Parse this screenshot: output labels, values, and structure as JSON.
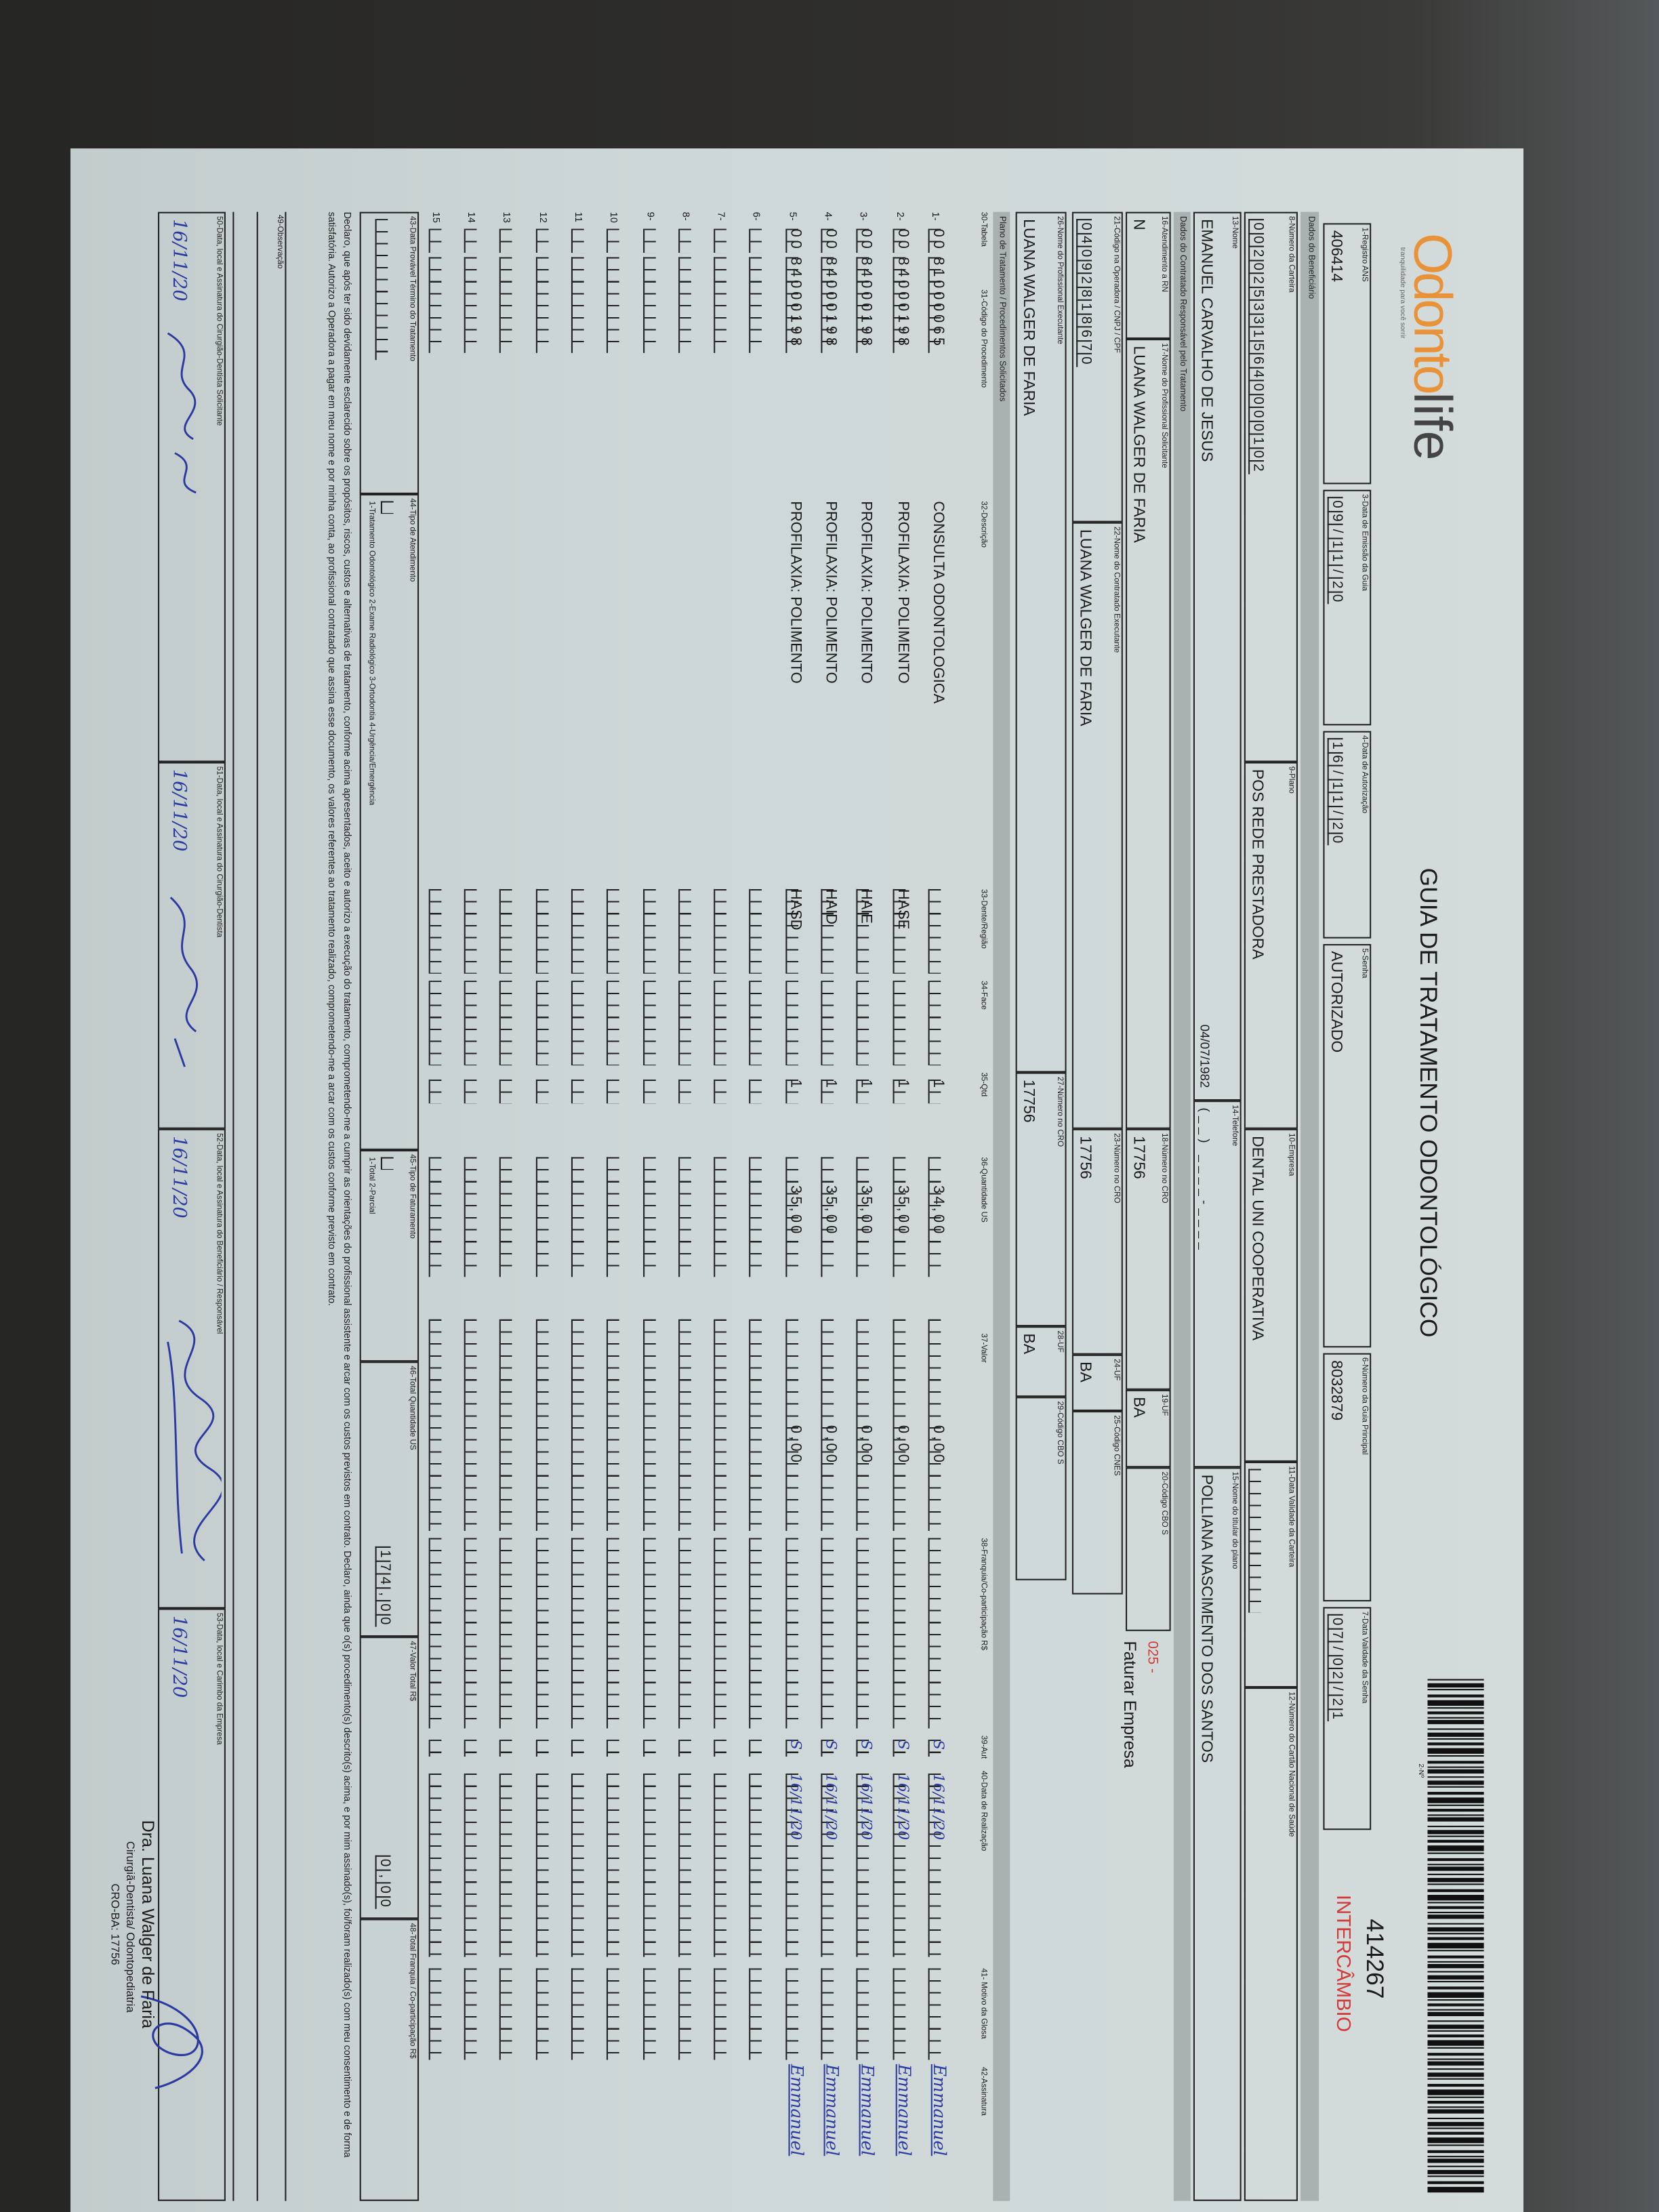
{
  "header": {
    "brand": "OdontoLife",
    "brand_part1": "Odonto",
    "brand_part2": "life",
    "tagline": "tranquilidade para você sorrir",
    "title": "GUIA DE TRATAMENTO ODONTOLÓGICO",
    "number_label": "2-Nº",
    "number": "414267",
    "badge": "INTERCÂMBIO",
    "badge_color": "#d23a3a",
    "brand_color": "#e8923a"
  },
  "row1": {
    "f1_label": "1-Registro ANS",
    "f1": "406414",
    "f3_label": "3-Data de Emissão da Guia",
    "f3": "09/11/20",
    "f4_label": "4-Data de Autorização",
    "f4": "16/11/20",
    "f5_label": "5-Senha",
    "f5": "AUTORIZADO",
    "f6_label": "6-Número da Guia Principal",
    "f6": "8032879",
    "f7_label": "7-Data Validade da Senha",
    "f7": "07/02/21"
  },
  "sections": {
    "beneficiario": "Dados do Beneficiário",
    "contratado": "Dados do Contratado Responsável pelo Tratamento",
    "plano": "Plano de Tratamento / Procedimentos Solicitados"
  },
  "beneficiario": {
    "f8_label": "8-Número da Carteira",
    "f8": "0020253315640000102",
    "f9_label": "9-Plano",
    "f9": "POS REDE PRESTADORA",
    "f10_label": "10-Empresa",
    "f10": "DENTAL UNI  COOPERATIVA",
    "f11_label": "11-Data Validade da Carteira",
    "f12_label": "12-Número do Cartão Nacional de Saúde",
    "f13_label": "13-Nome",
    "f13": "EMANUEL CARVALHO DE JESUS",
    "birth": "04/07/1982",
    "f14_label": "14-Telefone",
    "f14": "(__) ____-____",
    "f15_label": "15-Nome do titular do plano",
    "f15": "POLLIANA NASCIMENTO DOS SANTOS"
  },
  "contratado": {
    "f16_label": "16-Atendimento a RN",
    "f16": "N",
    "f17_label": "17-Nome do Profissional Solicitante",
    "f17": "LUANA WALGER DE FARIA",
    "f18_label": "18-Número no CRO",
    "f18": "17756",
    "f19_label": "19-UF",
    "f19": "BA",
    "f20_label": "20-Código CBO S",
    "cbo_code": "025 -",
    "cbo_text": "Faturar Empresa",
    "f21_label": "21-Código na Operadora / CNPJ / CPF",
    "f21": "04092818670",
    "f22_label": "22-Nome do Contratado Executante",
    "f22": "LUANA WALGER DE FARIA",
    "f23_label": "23-Número no CRO",
    "f23": "17756",
    "f24_label": "24-UF",
    "f24": "BA",
    "f25_label": "25-Código CNES",
    "f26_label": "26-Nome do Profissional Executante",
    "f26": "LUANA WALGER DE FARIA",
    "f27_label": "27-Número no CRO",
    "f27": "17756",
    "f28_label": "28-UF",
    "f28": "BA",
    "f29_label": "29-Código CBO S"
  },
  "table": {
    "headers": [
      "30-Tabela",
      "31-Código do Procedimento",
      "32-Descrição",
      "33-Dente/Região",
      "34-Face",
      "35-Qtd",
      "36-Quantidade US",
      "37-Valor",
      "38-Franquia/Co-participação R$",
      "39-Aut",
      "40-Data de Realização",
      "41- Motivo da Glosa",
      "42-Assinatura"
    ],
    "rows": [
      {
        "n": "1-",
        "tabela": "00",
        "codigo": "81000065",
        "descricao": "CONSULTA ODONTOLOGICA",
        "dente": "",
        "qtd": "1",
        "us": "34,00",
        "valor": "0,00",
        "aut": "S",
        "data": "16/11/20",
        "assinatura": "Emmanuel"
      },
      {
        "n": "2-",
        "tabela": "00",
        "codigo": "84000198",
        "descricao": "PROFILAXIA: POLIMENTO",
        "dente": "HASE",
        "qtd": "1",
        "us": "35,00",
        "valor": "0,00",
        "aut": "S",
        "data": "16/11/20",
        "assinatura": "Emmanuel"
      },
      {
        "n": "3-",
        "tabela": "00",
        "codigo": "84000198",
        "descricao": "PROFILAXIA: POLIMENTO",
        "dente": "HAIE",
        "qtd": "1",
        "us": "35,00",
        "valor": "0,00",
        "aut": "S",
        "data": "16/11/20",
        "assinatura": "Emmanuel"
      },
      {
        "n": "4-",
        "tabela": "00",
        "codigo": "84000198",
        "descricao": "PROFILAXIA: POLIMENTO",
        "dente": "HAID",
        "qtd": "1",
        "us": "35,00",
        "valor": "0,00",
        "aut": "S",
        "data": "16/11/20",
        "assinatura": "Emmanuel"
      },
      {
        "n": "5-",
        "tabela": "00",
        "codigo": "84000198",
        "descricao": "PROFILAXIA: POLIMENTO",
        "dente": "HASD",
        "qtd": "1",
        "us": "35,00",
        "valor": "0,00",
        "aut": "S",
        "data": "16/11/20",
        "assinatura": "Emmanuel"
      },
      {
        "n": "6-"
      },
      {
        "n": "7-"
      },
      {
        "n": "8-"
      },
      {
        "n": "9-"
      },
      {
        "n": "10"
      },
      {
        "n": "11"
      },
      {
        "n": "12"
      },
      {
        "n": "13"
      },
      {
        "n": "14"
      },
      {
        "n": "15"
      }
    ]
  },
  "totals": {
    "f43_label": "43-Data Provável Término do Tratamento",
    "f44_label": "44-Tipo de Atendimento",
    "f44_options": "1-Tratamento Odontológico  2-Exame Radiológico  3-Ortodontia  4-Urgência/Emergência",
    "f45_label": "45-Tipo de Faturamento",
    "f45_options": "1-Total  2-Parcial",
    "f46_label": "46-Total Quantidade US",
    "f46": "174,00",
    "f47_label": "47-Valor Total R$",
    "f47": "0,00",
    "f48_label": "48-Total Franquia / Co-participação R$"
  },
  "declaration": "Declaro, que após ter sido devidamente esclarecido sobre os propósitos, riscos, custos e alternativas de tratamento, conforme acima apresentados, aceito e autorizo a execução do tratamento, comprometendo-me a cumprir as orientações do profissional assistente e arcar com os custos previstos em contrato. Declaro, ainda que o(s) procedimento(s) descrito(s) acima, e por mim assinado(s), foi/foram realizado(s) com meu consentimento e de forma satisfatória. Autorizo a Operadora a pagar em meu nome e por minha conta, ao profissional contratado que assina esse documento, os valores referentes ao tratamento realizado, comprometendo-me a arcar com os custos conforme previsto em contrato.",
  "observacao_label": "49-Observação",
  "signatures": {
    "f50_label": "50-Data, local e Assinatura do Cirurgião-Dentista Solicitante",
    "f50": "16/11/20",
    "f51_label": "51-Data, local e Assinatura do Cirurgião-Dentista",
    "f51": "16/11/20",
    "f52_label": "52-Data, local e Assinatura do Beneficiário / Responsável",
    "f52": "16/11/20",
    "f53_label": "53-Data, local e Carimbo da Empresa",
    "f53": "16/11/20"
  },
  "stamp": {
    "name": "Dra. Luana Walger de Faria",
    "title": "Cirurgiã-Dentista/ Odontopediatria",
    "cro": "CRO-BA: 17756"
  }
}
